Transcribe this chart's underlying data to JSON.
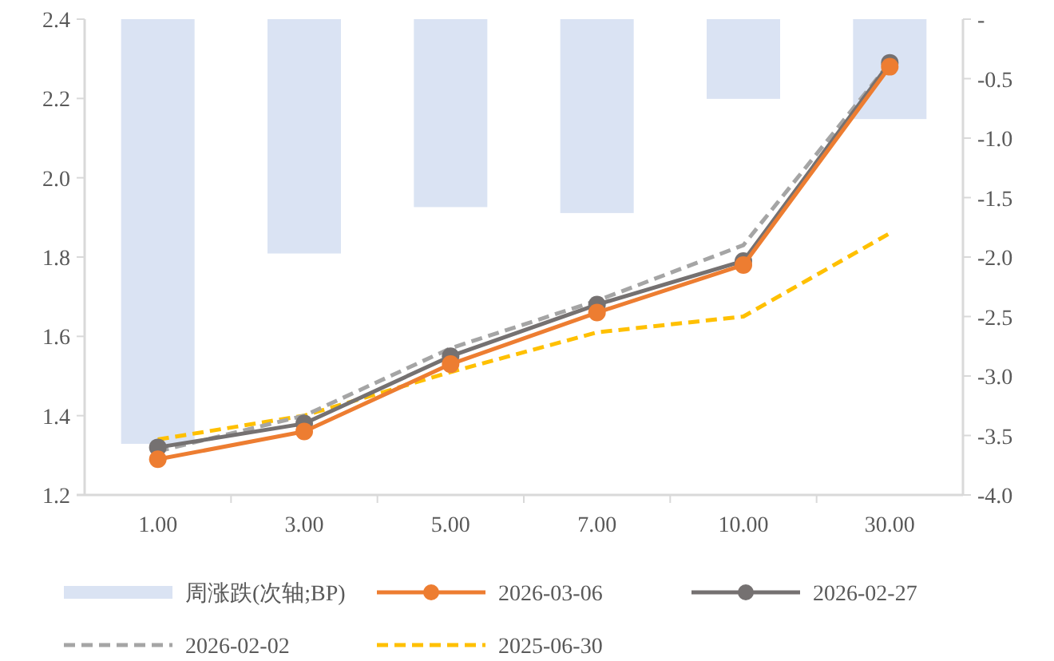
{
  "chart_data": {
    "type": "line",
    "categories": [
      "1.00",
      "3.00",
      "5.00",
      "7.00",
      "10.00",
      "30.00"
    ],
    "series": [
      {
        "name": "周涨跌(次轴;BP)",
        "type": "bar",
        "axis": "y2",
        "color": "#dae3f3",
        "values": [
          -3.57,
          -1.97,
          -1.58,
          -1.63,
          -0.67,
          -0.84
        ]
      },
      {
        "name": "2026-03-06",
        "color": "#ed7d31",
        "marker": "circle",
        "line_style": "solid",
        "values": [
          1.29,
          1.36,
          1.53,
          1.66,
          1.78,
          2.28
        ]
      },
      {
        "name": "2026-02-27",
        "color": "#757171",
        "marker": "circle",
        "line_style": "solid",
        "values": [
          1.32,
          1.38,
          1.55,
          1.68,
          1.79,
          2.29
        ]
      },
      {
        "name": "2026-02-02",
        "color": "#a5a5a5",
        "marker": "none",
        "line_style": "dashed",
        "values": [
          1.31,
          1.4,
          1.57,
          1.69,
          1.83,
          2.29
        ]
      },
      {
        "name": "2025-06-30",
        "color": "#ffc000",
        "marker": "none",
        "line_style": "dashed",
        "values": [
          1.34,
          1.4,
          1.51,
          1.61,
          1.65,
          1.86
        ]
      }
    ],
    "ylim": [
      1.2,
      2.4
    ],
    "yticks": [
      {
        "value": 1.2,
        "label": "1.2"
      },
      {
        "value": 1.4,
        "label": "1.4"
      },
      {
        "value": 1.6,
        "label": "1.6"
      },
      {
        "value": 1.8,
        "label": "1.8"
      },
      {
        "value": 2.0,
        "label": "2.0"
      },
      {
        "value": 2.2,
        "label": "2.2"
      },
      {
        "value": 2.4,
        "label": "2.4"
      }
    ],
    "y2lim": [
      -4.0,
      0
    ],
    "y2ticks": [
      {
        "value": 0,
        "label": "-"
      },
      {
        "value": -0.5,
        "label": "-0.5"
      },
      {
        "value": -1.0,
        "label": "-1.0"
      },
      {
        "value": -1.5,
        "label": "-1.5"
      },
      {
        "value": -2.0,
        "label": "-2.0"
      },
      {
        "value": -2.5,
        "label": "-2.5"
      },
      {
        "value": -3.0,
        "label": "-3.0"
      },
      {
        "value": -3.5,
        "label": "-3.5"
      },
      {
        "value": -4.0,
        "label": "-4.0"
      }
    ],
    "grid": false,
    "legend": "bottom"
  }
}
